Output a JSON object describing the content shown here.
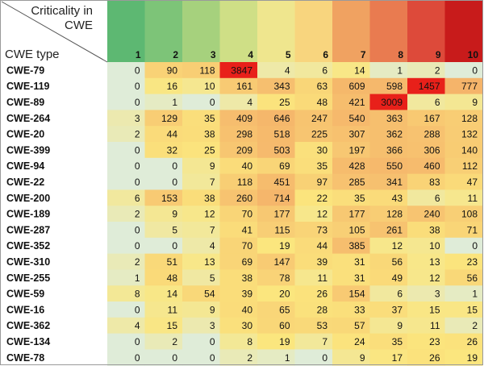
{
  "chart_data": {
    "type": "heatmap",
    "corner_top": "Criticality in CWE",
    "corner_bottom": "CWE type",
    "columns": [
      "1",
      "2",
      "3",
      "4",
      "5",
      "6",
      "7",
      "8",
      "9",
      "10"
    ],
    "column_colors": [
      "#5db872",
      "#7dc478",
      "#a6d17d",
      "#cfdf86",
      "#efe68e",
      "#f8d57e",
      "#f0a261",
      "#e97b50",
      "#dd4a3a",
      "#c81b1b"
    ],
    "rows": [
      {
        "label": "CWE-79",
        "values": [
          0,
          90,
          118,
          3847,
          4,
          6,
          14,
          1,
          2,
          0
        ]
      },
      {
        "label": "CWE-119",
        "values": [
          0,
          16,
          10,
          161,
          343,
          63,
          609,
          598,
          1457,
          777
        ]
      },
      {
        "label": "CWE-89",
        "values": [
          0,
          1,
          0,
          4,
          25,
          48,
          421,
          3009,
          6,
          9
        ]
      },
      {
        "label": "CWE-264",
        "values": [
          3,
          129,
          35,
          409,
          646,
          247,
          540,
          363,
          167,
          128
        ]
      },
      {
        "label": "CWE-20",
        "values": [
          2,
          44,
          38,
          298,
          518,
          225,
          307,
          362,
          288,
          132
        ]
      },
      {
        "label": "CWE-399",
        "values": [
          0,
          32,
          25,
          209,
          503,
          30,
          197,
          366,
          306,
          140
        ]
      },
      {
        "label": "CWE-94",
        "values": [
          0,
          0,
          9,
          40,
          69,
          35,
          428,
          550,
          460,
          112
        ]
      },
      {
        "label": "CWE-22",
        "values": [
          0,
          0,
          7,
          118,
          451,
          97,
          285,
          341,
          83,
          47
        ]
      },
      {
        "label": "CWE-200",
        "values": [
          6,
          153,
          38,
          260,
          714,
          22,
          35,
          43,
          6,
          11
        ]
      },
      {
        "label": "CWE-189",
        "values": [
          2,
          9,
          12,
          70,
          177,
          12,
          177,
          128,
          240,
          108
        ]
      },
      {
        "label": "CWE-287",
        "values": [
          0,
          5,
          7,
          41,
          115,
          73,
          105,
          261,
          38,
          71
        ]
      },
      {
        "label": "CWE-352",
        "values": [
          0,
          0,
          4,
          70,
          19,
          44,
          385,
          12,
          10,
          0
        ]
      },
      {
        "label": "CWE-310",
        "values": [
          2,
          51,
          13,
          69,
          147,
          39,
          31,
          56,
          13,
          23
        ]
      },
      {
        "label": "CWE-255",
        "values": [
          1,
          48,
          5,
          38,
          78,
          11,
          31,
          49,
          12,
          56
        ]
      },
      {
        "label": "CWE-59",
        "values": [
          8,
          14,
          54,
          39,
          20,
          26,
          154,
          6,
          3,
          1
        ]
      },
      {
        "label": "CWE-16",
        "values": [
          0,
          11,
          9,
          40,
          65,
          28,
          33,
          37,
          15,
          15
        ]
      },
      {
        "label": "CWE-362",
        "values": [
          4,
          15,
          3,
          30,
          60,
          53,
          57,
          9,
          11,
          2
        ]
      },
      {
        "label": "CWE-134",
        "values": [
          0,
          2,
          0,
          8,
          19,
          7,
          24,
          35,
          23,
          26
        ]
      },
      {
        "label": "CWE-78",
        "values": [
          0,
          0,
          0,
          2,
          1,
          0,
          9,
          17,
          26,
          19
        ]
      }
    ],
    "cell_color_scale": {
      "low": "#dfecd8",
      "mid": "#fbe67e",
      "high": "#f5b46a",
      "max": "#e8201a",
      "max_threshold": 1000
    }
  }
}
